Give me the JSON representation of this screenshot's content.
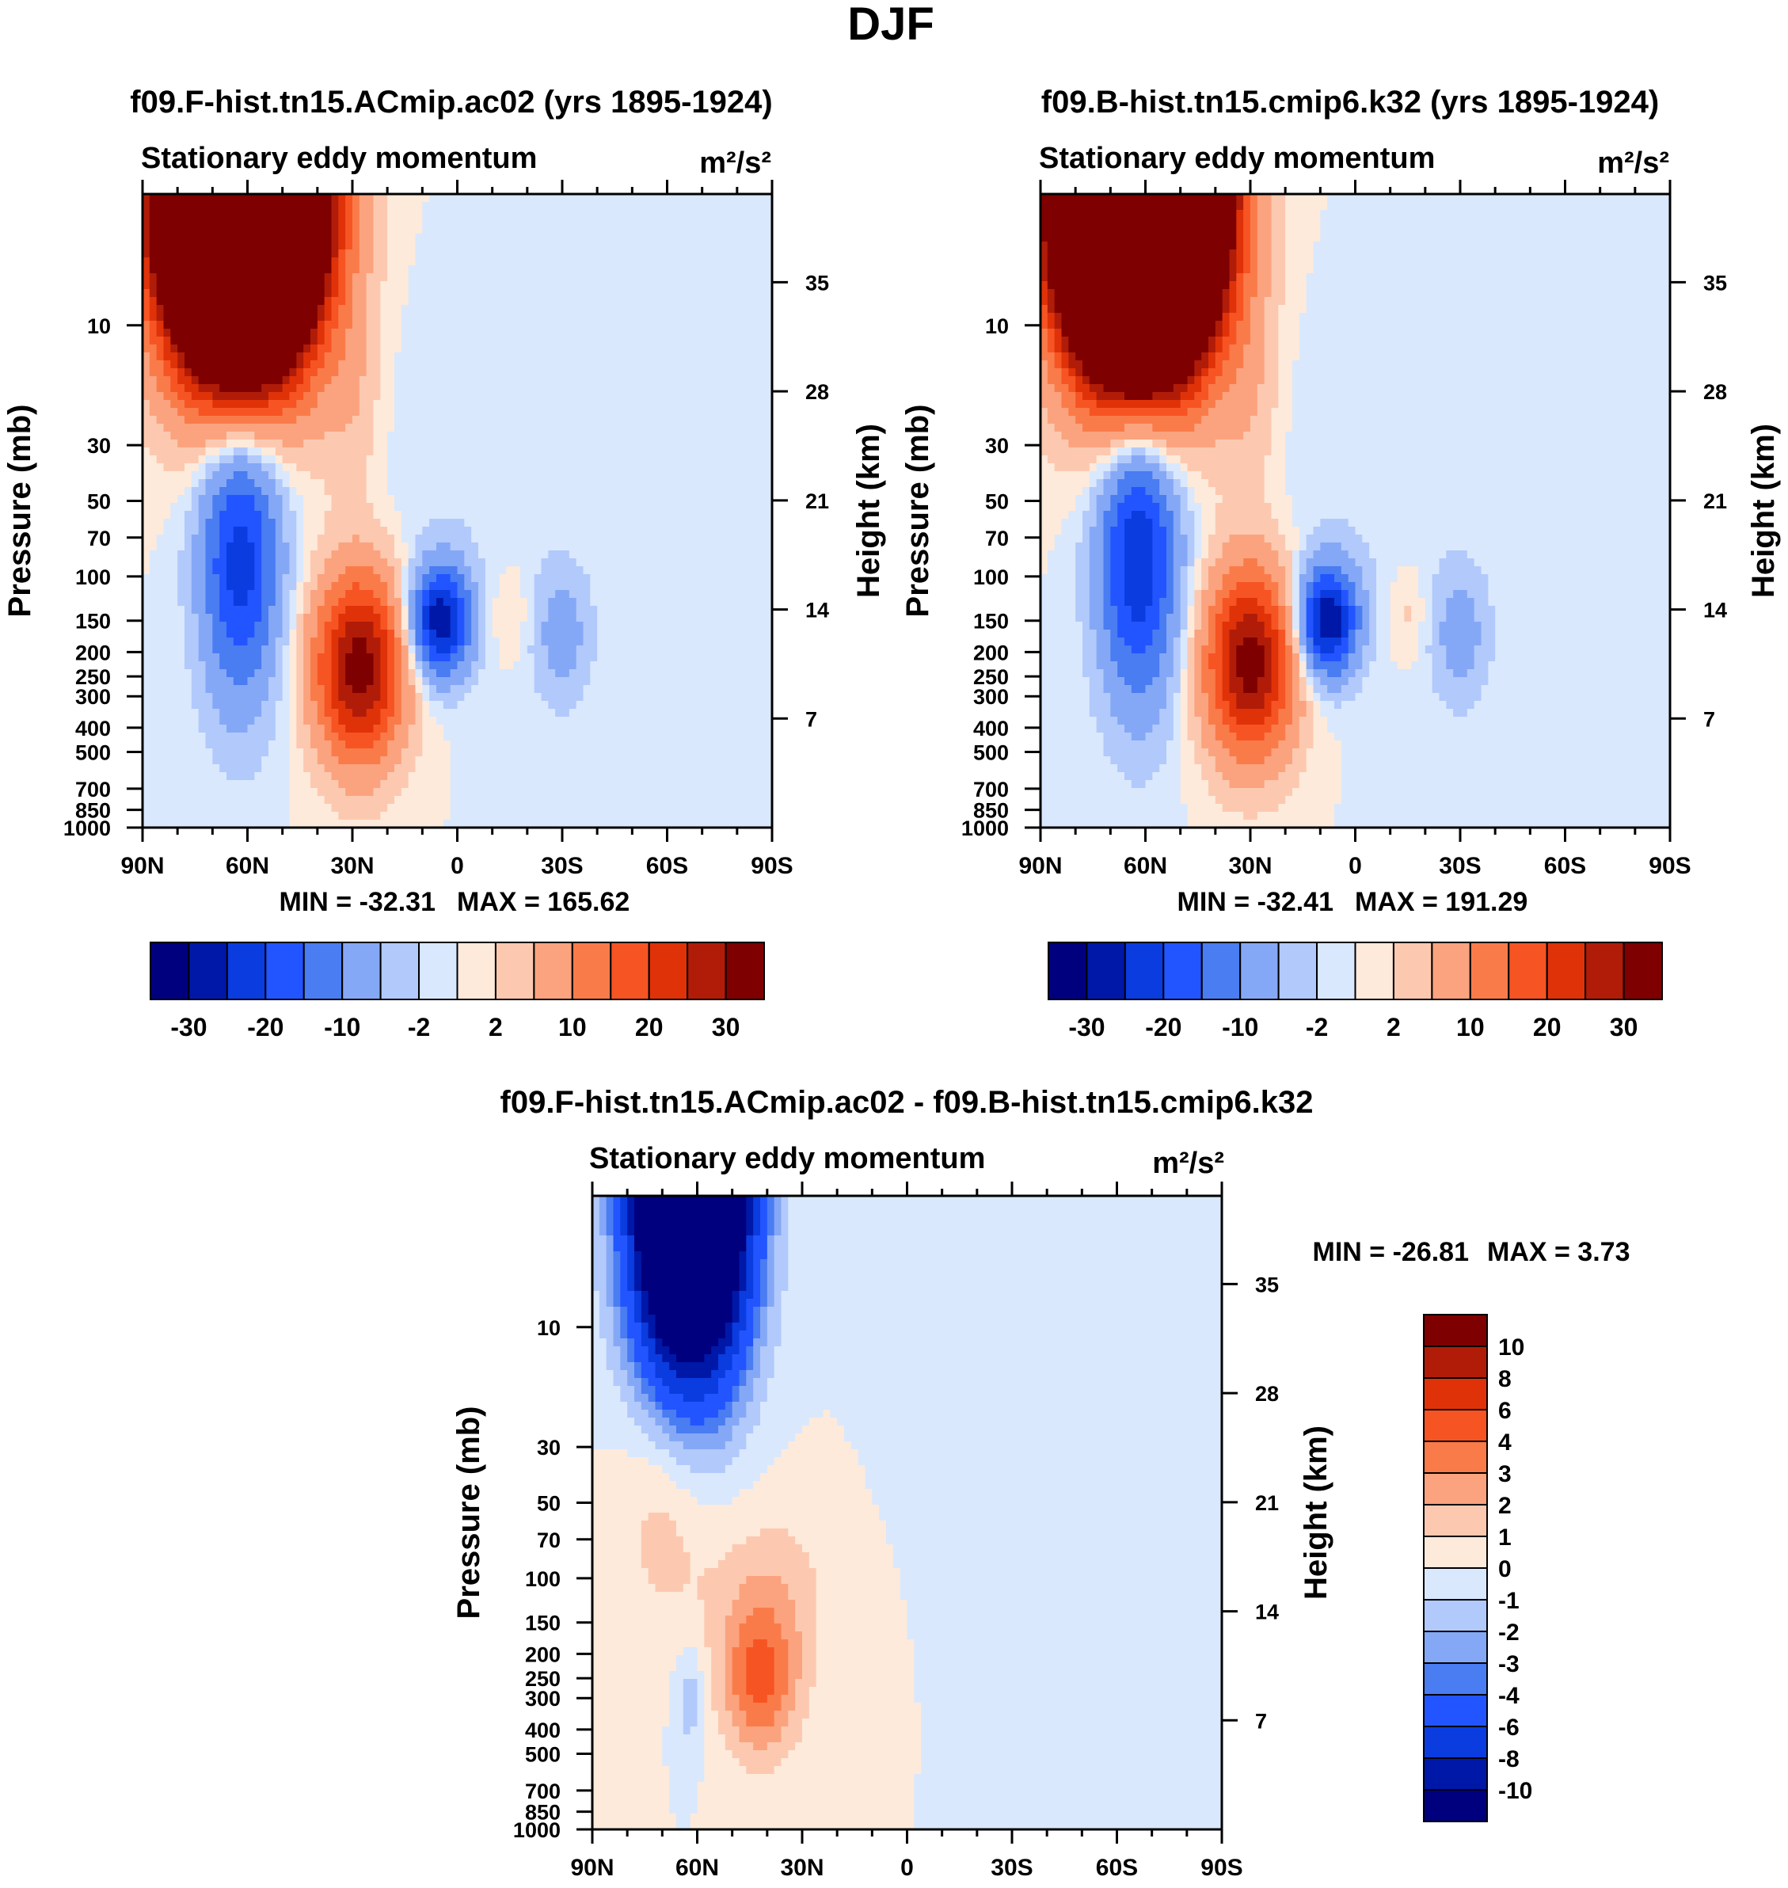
{
  "figure": {
    "season_title": "DJF",
    "field_label": "Stationary eddy momentum",
    "units": "m²/s²",
    "y_axis_label": "Pressure (mb)",
    "y2_axis_label": "Height (km)",
    "colors": {
      "abs": [
        "#00007f",
        "#0018a8",
        "#0a3ce0",
        "#2255ff",
        "#4a7cf2",
        "#85a8f6",
        "#b2c9fb",
        "#d9e8fd",
        "#fdeadb",
        "#fcc9b0",
        "#fba37e",
        "#fa7b4a",
        "#f75423",
        "#e03208",
        "#b01c08",
        "#7e0000"
      ],
      "diff": [
        "#00007f",
        "#0018a8",
        "#0a3ce0",
        "#2255ff",
        "#4a7cf2",
        "#85a8f6",
        "#b2c9fb",
        "#d9e8fd",
        "#fdeadb",
        "#fcc9b0",
        "#fba37e",
        "#fa7b4a",
        "#f75423",
        "#e03208",
        "#b01c08",
        "#7e0000"
      ],
      "frame": "#000000"
    }
  },
  "chart_data": [
    {
      "id": "panel1",
      "type": "heatmap",
      "title": "f09.F-hist.tn15.ACmip.ac02 (yrs 1895-1924)",
      "left_label": "Stationary eddy momentum",
      "right_label": "m²/s²",
      "xlabel": "",
      "ylabel": "Pressure (mb)",
      "y2label": "Height (km)",
      "x_ticks": [
        "90N",
        "60N",
        "30N",
        "0",
        "30S",
        "60S",
        "90S"
      ],
      "x_tick_values": [
        90,
        60,
        30,
        0,
        -30,
        -60,
        -90
      ],
      "y_ticks": [
        "10",
        "30",
        "50",
        "70",
        "100",
        "150",
        "200",
        "250",
        "300",
        "400",
        "500",
        "700",
        "850",
        "1000"
      ],
      "y_tick_values": [
        10,
        30,
        50,
        70,
        100,
        150,
        200,
        250,
        300,
        400,
        500,
        700,
        850,
        1000
      ],
      "y2_ticks": [
        "35",
        "28",
        "21",
        "14",
        "7"
      ],
      "y2_tick_values": [
        35,
        28,
        21,
        14,
        7
      ],
      "xlim": [
        90,
        -90
      ],
      "ylim_mb": [
        1000,
        3
      ],
      "min_label": "MIN = -32.31",
      "max_label": "MAX = 165.62",
      "min": -32.31,
      "max": 165.62,
      "colorbar_labels": [
        "-30",
        "-20",
        "-10",
        "-2",
        "2",
        "10",
        "20",
        "30"
      ],
      "levels": [
        -30,
        -25,
        -20,
        -15,
        -10,
        -5,
        -2,
        0,
        2,
        5,
        10,
        15,
        20,
        25,
        30
      ],
      "features": [
        {
          "lat": 62,
          "p": 3,
          "amp": 190,
          "wlat": 14,
          "wz": 1.0
        },
        {
          "lat": 62,
          "p": 80,
          "amp": -23,
          "wlat": 8,
          "wz": 0.95
        },
        {
          "lat": 28,
          "p": 230,
          "amp": 33,
          "wlat": 9,
          "wz": 0.6
        },
        {
          "lat": 5,
          "p": 150,
          "amp": -29,
          "wlat": 6,
          "wz": 0.35
        },
        {
          "lat": -30,
          "p": 170,
          "amp": -7,
          "wlat": 6,
          "wz": 0.45
        },
        {
          "lat": -15,
          "p": 140,
          "amp": 3,
          "wlat": 4,
          "wz": 0.3
        },
        {
          "lat": 30,
          "p": 20,
          "amp": 4,
          "wlat": 6,
          "wz": 0.7
        },
        {
          "lat": 0,
          "p": 40,
          "amp": -1.5,
          "wlat": 20,
          "wz": 1.2
        }
      ]
    },
    {
      "id": "panel2",
      "type": "heatmap",
      "title": "f09.B-hist.tn15.cmip6.k32 (yrs 1895-1924)",
      "left_label": "Stationary eddy momentum",
      "right_label": "m²/s²",
      "xlabel": "",
      "ylabel": "Pressure (mb)",
      "y2label": "Height (km)",
      "x_ticks": [
        "90N",
        "60N",
        "30N",
        "0",
        "30S",
        "60S",
        "90S"
      ],
      "x_tick_values": [
        90,
        60,
        30,
        0,
        -30,
        -60,
        -90
      ],
      "y_ticks": [
        "10",
        "30",
        "50",
        "70",
        "100",
        "150",
        "200",
        "250",
        "300",
        "400",
        "500",
        "700",
        "850",
        "1000"
      ],
      "y_tick_values": [
        10,
        30,
        50,
        70,
        100,
        150,
        200,
        250,
        300,
        400,
        500,
        700,
        850,
        1000
      ],
      "y2_ticks": [
        "35",
        "28",
        "21",
        "14",
        "7"
      ],
      "y2_tick_values": [
        35,
        28,
        21,
        14,
        7
      ],
      "xlim": [
        90,
        -90
      ],
      "ylim_mb": [
        1000,
        3
      ],
      "min_label": "MIN = -32.41",
      "max_label": "MAX = 191.29",
      "min": -32.41,
      "max": 191.29,
      "colorbar_labels": [
        "-30",
        "-20",
        "-10",
        "-2",
        "2",
        "10",
        "20",
        "30"
      ],
      "levels": [
        -30,
        -25,
        -20,
        -15,
        -10,
        -5,
        -2,
        0,
        2,
        5,
        10,
        15,
        20,
        25,
        30
      ],
      "features": [
        {
          "lat": 62,
          "p": 3,
          "amp": 215,
          "wlat": 14,
          "wz": 1.0
        },
        {
          "lat": 62,
          "p": 80,
          "amp": -25,
          "wlat": 8,
          "wz": 0.95
        },
        {
          "lat": 30,
          "p": 220,
          "amp": 33,
          "wlat": 9,
          "wz": 0.6
        },
        {
          "lat": 8,
          "p": 150,
          "amp": -30,
          "wlat": 6,
          "wz": 0.35
        },
        {
          "lat": -30,
          "p": 170,
          "amp": -7,
          "wlat": 6,
          "wz": 0.45
        },
        {
          "lat": -15,
          "p": 140,
          "amp": 3,
          "wlat": 4,
          "wz": 0.3
        },
        {
          "lat": 30,
          "p": 20,
          "amp": 4,
          "wlat": 6,
          "wz": 0.7
        },
        {
          "lat": 0,
          "p": 40,
          "amp": -1.5,
          "wlat": 20,
          "wz": 1.2
        }
      ]
    },
    {
      "id": "panel3",
      "type": "heatmap",
      "title": "f09.F-hist.tn15.ACmip.ac02 - f09.B-hist.tn15.cmip6.k32",
      "left_label": "Stationary eddy momentum",
      "right_label": "m²/s²",
      "xlabel": "",
      "ylabel": "Pressure (mb)",
      "y2label": "Height (km)",
      "x_ticks": [
        "90N",
        "60N",
        "30N",
        "0",
        "30S",
        "60S",
        "90S"
      ],
      "x_tick_values": [
        90,
        60,
        30,
        0,
        -30,
        -60,
        -90
      ],
      "y_ticks": [
        "10",
        "30",
        "50",
        "70",
        "100",
        "150",
        "200",
        "250",
        "300",
        "400",
        "500",
        "700",
        "850",
        "1000"
      ],
      "y_tick_values": [
        10,
        30,
        50,
        70,
        100,
        150,
        200,
        250,
        300,
        400,
        500,
        700,
        850,
        1000
      ],
      "y2_ticks": [
        "35",
        "28",
        "21",
        "14",
        "7"
      ],
      "y2_tick_values": [
        35,
        28,
        21,
        14,
        7
      ],
      "xlim": [
        90,
        -90
      ],
      "ylim_mb": [
        1000,
        3
      ],
      "min_label": "MIN = -26.81",
      "max_label": "MAX =   3.73",
      "min": -26.81,
      "max": 3.73,
      "colorbar_labels": [
        "10",
        "8",
        "6",
        "4",
        "3",
        "2",
        "1",
        "0",
        "-1",
        "-2",
        "-3",
        "-4",
        "-6",
        "-8",
        "-10"
      ],
      "levels": [
        -10,
        -8,
        -6,
        -4,
        -3,
        -2,
        -1,
        0,
        1,
        2,
        3,
        4,
        6,
        8,
        10
      ],
      "features": [
        {
          "lat": 62,
          "p": 3,
          "amp": -28,
          "wlat": 11,
          "wz": 1.1
        },
        {
          "lat": 42,
          "p": 260,
          "amp": 4,
          "wlat": 8,
          "wz": 0.5
        },
        {
          "lat": 62,
          "p": 300,
          "amp": -1.8,
          "wlat": 3,
          "wz": 0.35
        },
        {
          "lat": 70,
          "p": 50,
          "amp": 1.6,
          "wlat": 9,
          "wz": 0.8
        },
        {
          "lat": 40,
          "p": 110,
          "amp": 1.5,
          "wlat": 14,
          "wz": 0.6
        },
        {
          "lat": -20,
          "p": 20,
          "amp": -0.6,
          "wlat": 15,
          "wz": 0.9
        },
        {
          "lat": -60,
          "p": 300,
          "amp": -0.5,
          "wlat": 8,
          "wz": 0.8
        }
      ]
    }
  ]
}
